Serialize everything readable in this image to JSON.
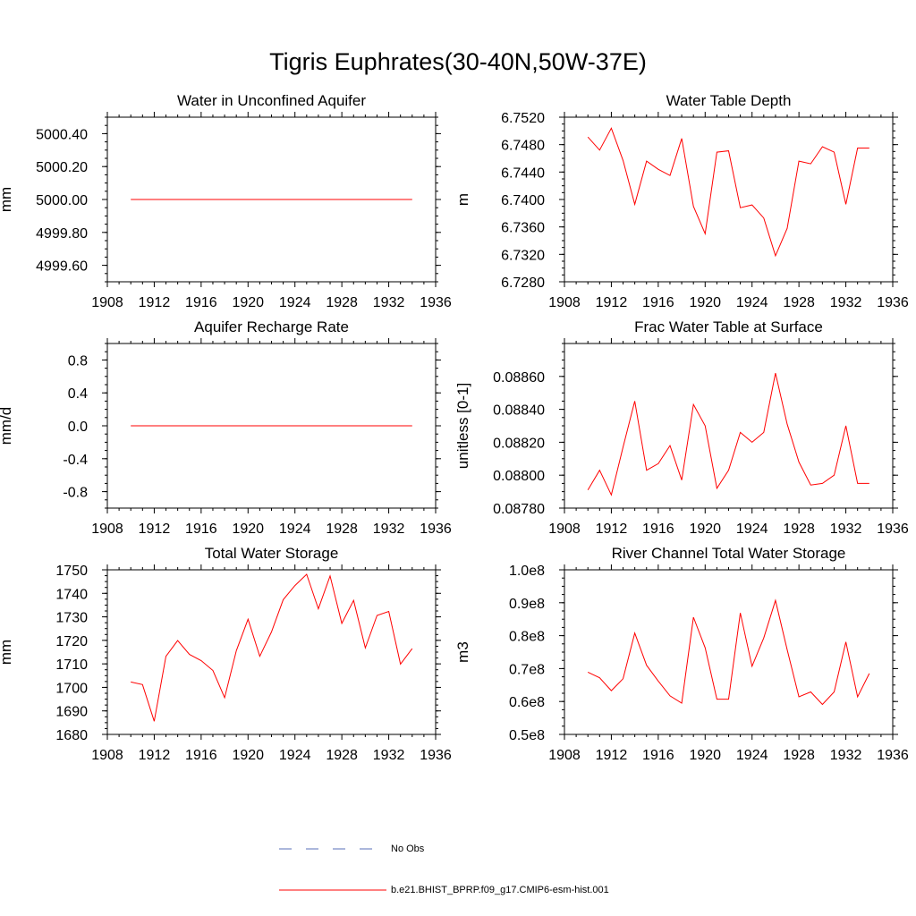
{
  "figure_title": "Tigris Euphrates(30-40N,50W-37E)",
  "legend": {
    "items": [
      {
        "label": "No Obs",
        "style": "dashed",
        "color": "#5a6fb8"
      },
      {
        "label": "b.e21.BHIST_BPRP.f09_g17.CMIP6-esm-hist.001",
        "style": "solid",
        "color": "#ff0000"
      }
    ]
  },
  "chart_data": [
    {
      "type": "line",
      "title": "Water in Unconfined Aquifer",
      "ylabel": "mm",
      "xlim": [
        1908,
        1936
      ],
      "x_ticks": [
        "1908",
        "1912",
        "1916",
        "1920",
        "1924",
        "1928",
        "1932",
        "1936"
      ],
      "ylim": [
        4999.5,
        5000.5
      ],
      "y_ticks": [
        {
          "value": 4999.6,
          "label": "4999.60"
        },
        {
          "value": 4999.8,
          "label": "4999.80"
        },
        {
          "value": 5000.0,
          "label": "5000.00"
        },
        {
          "value": 5000.2,
          "label": "5000.20"
        },
        {
          "value": 5000.4,
          "label": "5000.40"
        }
      ],
      "x": [
        1910,
        1911,
        1912,
        1913,
        1914,
        1915,
        1916,
        1917,
        1918,
        1919,
        1920,
        1921,
        1922,
        1923,
        1924,
        1925,
        1926,
        1927,
        1928,
        1929,
        1930,
        1931,
        1932,
        1933,
        1934
      ],
      "values": [
        5000,
        5000,
        5000,
        5000,
        5000,
        5000,
        5000,
        5000,
        5000,
        5000,
        5000,
        5000,
        5000,
        5000,
        5000,
        5000,
        5000,
        5000,
        5000,
        5000,
        5000,
        5000,
        5000,
        5000,
        5000
      ],
      "color": "#ff0000"
    },
    {
      "type": "line",
      "title": "Water Table Depth",
      "ylabel": "m",
      "xlim": [
        1908,
        1936
      ],
      "x_ticks": [
        "1908",
        "1912",
        "1916",
        "1920",
        "1924",
        "1928",
        "1932",
        "1936"
      ],
      "ylim": [
        6.728,
        6.752
      ],
      "y_ticks": [
        {
          "value": 6.728,
          "label": "6.7280"
        },
        {
          "value": 6.732,
          "label": "6.7320"
        },
        {
          "value": 6.736,
          "label": "6.7360"
        },
        {
          "value": 6.74,
          "label": "6.7400"
        },
        {
          "value": 6.744,
          "label": "6.7440"
        },
        {
          "value": 6.748,
          "label": "6.7480"
        },
        {
          "value": 6.752,
          "label": "6.7520"
        }
      ],
      "x": [
        1910,
        1911,
        1912,
        1913,
        1914,
        1915,
        1916,
        1917,
        1918,
        1919,
        1920,
        1921,
        1922,
        1923,
        1924,
        1925,
        1926,
        1927,
        1928,
        1929,
        1930,
        1931,
        1932,
        1933,
        1934
      ],
      "values": [
        6.7491,
        6.7472,
        6.7504,
        6.7457,
        6.7393,
        6.7456,
        6.7444,
        6.7435,
        6.7489,
        6.739,
        6.735,
        6.7469,
        6.7471,
        6.7388,
        6.7392,
        6.7373,
        6.7318,
        6.7358,
        6.7456,
        6.7452,
        6.7477,
        6.7469,
        6.7393,
        6.7475,
        6.7475
      ],
      "color": "#ff0000"
    },
    {
      "type": "line",
      "title": "Aquifer Recharge Rate",
      "ylabel": "mm/d",
      "xlim": [
        1908,
        1936
      ],
      "x_ticks": [
        "1908",
        "1912",
        "1916",
        "1920",
        "1924",
        "1928",
        "1932",
        "1936"
      ],
      "ylim": [
        -1.0,
        1.0
      ],
      "y_ticks": [
        {
          "value": -0.8,
          "label": "-0.8"
        },
        {
          "value": -0.4,
          "label": "-0.4"
        },
        {
          "value": 0.0,
          "label": "0.0"
        },
        {
          "value": 0.4,
          "label": "0.4"
        },
        {
          "value": 0.8,
          "label": "0.8"
        }
      ],
      "x": [
        1910,
        1911,
        1912,
        1913,
        1914,
        1915,
        1916,
        1917,
        1918,
        1919,
        1920,
        1921,
        1922,
        1923,
        1924,
        1925,
        1926,
        1927,
        1928,
        1929,
        1930,
        1931,
        1932,
        1933,
        1934
      ],
      "values": [
        0,
        0,
        0,
        0,
        0,
        0,
        0,
        0,
        0,
        0,
        0,
        0,
        0,
        0,
        0,
        0,
        0,
        0,
        0,
        0,
        0,
        0,
        0,
        0,
        0
      ],
      "color": "#ff0000"
    },
    {
      "type": "line",
      "title": "Frac Water Table at Surface",
      "ylabel": "unitless [0-1]",
      "xlim": [
        1908,
        1936
      ],
      "x_ticks": [
        "1908",
        "1912",
        "1916",
        "1920",
        "1924",
        "1928",
        "1932",
        "1936"
      ],
      "ylim": [
        0.0878,
        0.0888
      ],
      "y_ticks": [
        {
          "value": 0.0878,
          "label": "0.08780"
        },
        {
          "value": 0.088,
          "label": "0.08800"
        },
        {
          "value": 0.0882,
          "label": "0.08820"
        },
        {
          "value": 0.0884,
          "label": "0.08840"
        },
        {
          "value": 0.0886,
          "label": "0.08860"
        }
      ],
      "x": [
        1910,
        1911,
        1912,
        1913,
        1914,
        1915,
        1916,
        1917,
        1918,
        1919,
        1920,
        1921,
        1922,
        1923,
        1924,
        1925,
        1926,
        1927,
        1928,
        1929,
        1930,
        1931,
        1932,
        1933,
        1934
      ],
      "values": [
        0.08791,
        0.08803,
        0.08788,
        0.08817,
        0.08845,
        0.08803,
        0.08807,
        0.08818,
        0.08797,
        0.08843,
        0.0883,
        0.08792,
        0.08803,
        0.08826,
        0.0882,
        0.08826,
        0.08862,
        0.08831,
        0.08808,
        0.08794,
        0.08795,
        0.088,
        0.0883,
        0.08795,
        0.08795
      ],
      "color": "#ff0000"
    },
    {
      "type": "line",
      "title": "Total Water Storage",
      "ylabel": "mm",
      "xlim": [
        1908,
        1936
      ],
      "x_ticks": [
        "1908",
        "1912",
        "1916",
        "1920",
        "1924",
        "1928",
        "1932",
        "1936"
      ],
      "ylim": [
        1680,
        1750
      ],
      "y_ticks": [
        {
          "value": 1680,
          "label": "1680"
        },
        {
          "value": 1690,
          "label": "1690"
        },
        {
          "value": 1700,
          "label": "1700"
        },
        {
          "value": 1710,
          "label": "1710"
        },
        {
          "value": 1720,
          "label": "1720"
        },
        {
          "value": 1730,
          "label": "1730"
        },
        {
          "value": 1740,
          "label": "1740"
        },
        {
          "value": 1750,
          "label": "1750"
        }
      ],
      "x": [
        1910,
        1911,
        1912,
        1913,
        1914,
        1915,
        1916,
        1917,
        1918,
        1919,
        1920,
        1921,
        1922,
        1923,
        1924,
        1925,
        1926,
        1927,
        1928,
        1929,
        1930,
        1931,
        1932,
        1933,
        1934
      ],
      "values": [
        1702.3,
        1701.2,
        1685.6,
        1713.2,
        1719.9,
        1714.0,
        1711.4,
        1707.2,
        1695.6,
        1715.6,
        1729.0,
        1713.2,
        1723.6,
        1737.3,
        1743.3,
        1748.1,
        1733.4,
        1747.4,
        1727.2,
        1737.0,
        1716.8,
        1730.6,
        1732.3,
        1709.9,
        1716.5
      ],
      "color": "#ff0000"
    },
    {
      "type": "line",
      "title": "River Channel Total Water Storage",
      "ylabel": "m3",
      "xlim": [
        1908,
        1936
      ],
      "x_ticks": [
        "1908",
        "1912",
        "1916",
        "1920",
        "1924",
        "1928",
        "1932",
        "1936"
      ],
      "ylim": [
        50000000,
        100000000
      ],
      "y_ticks": [
        {
          "value": 50000000,
          "label": "0.5e8"
        },
        {
          "value": 60000000,
          "label": "0.6e8"
        },
        {
          "value": 70000000,
          "label": "0.7e8"
        },
        {
          "value": 80000000,
          "label": "0.8e8"
        },
        {
          "value": 90000000,
          "label": "0.9e8"
        },
        {
          "value": 100000000,
          "label": "1.0e8"
        }
      ],
      "x": [
        1910,
        1911,
        1912,
        1913,
        1914,
        1915,
        1916,
        1917,
        1918,
        1919,
        1920,
        1921,
        1922,
        1923,
        1924,
        1925,
        1926,
        1927,
        1928,
        1929,
        1930,
        1931,
        1932,
        1933,
        1934
      ],
      "values": [
        68900000,
        67200000,
        63300000,
        66900000,
        80800000,
        71000000,
        66200000,
        61700000,
        59500000,
        85600000,
        76300000,
        60700000,
        60700000,
        86900000,
        70700000,
        79300000,
        90700000,
        75700000,
        61400000,
        62900000,
        59100000,
        62900000,
        78100000,
        61400000,
        68500000
      ],
      "color": "#ff0000"
    }
  ]
}
